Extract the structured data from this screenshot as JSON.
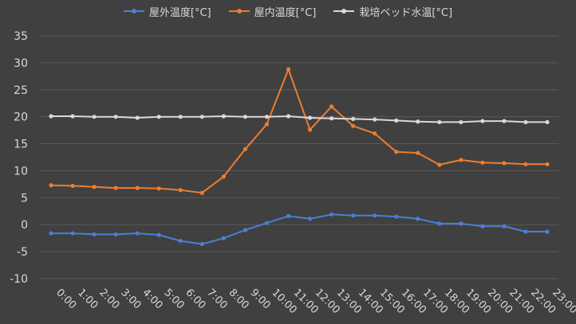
{
  "chart_data": {
    "type": "line",
    "categories": [
      "0:00",
      "1:00",
      "2:00",
      "3:00",
      "4:00",
      "5:00",
      "6:00",
      "7:00",
      "8:00",
      "9:00",
      "10:00",
      "11:00",
      "12:00",
      "13:00",
      "14:00",
      "15:00",
      "16:00",
      "17:00",
      "18:00",
      "19:00",
      "20:00",
      "21:00",
      "22:00",
      "23:00"
    ],
    "ylim": [
      -10,
      35
    ],
    "yticks": [
      -10,
      -5,
      0,
      5,
      10,
      15,
      20,
      25,
      30,
      35
    ],
    "grid": true,
    "legend_position": "top",
    "series": [
      {
        "name": "屋外温度[°C]",
        "color": "#4a7fd4",
        "values": [
          -1.6,
          -1.6,
          -1.8,
          -1.8,
          -1.6,
          -1.9,
          -3.0,
          -3.6,
          -2.5,
          -1.0,
          0.3,
          1.6,
          1.1,
          1.9,
          1.7,
          1.7,
          1.5,
          1.1,
          0.2,
          0.2,
          -0.3,
          -0.3,
          -1.3,
          -1.3
        ]
      },
      {
        "name": "屋内温度[°C]",
        "color": "#ed7d31",
        "values": [
          7.3,
          7.2,
          7.0,
          6.8,
          6.8,
          6.7,
          6.4,
          5.9,
          8.9,
          14.0,
          18.6,
          28.8,
          17.6,
          21.9,
          18.3,
          16.9,
          13.5,
          13.3,
          11.1,
          12.0,
          11.5,
          11.4,
          11.2,
          11.2
        ]
      },
      {
        "name": "栽培ベッド水温[°C]",
        "color": "#d9d9d9",
        "values": [
          20.1,
          20.1,
          20.0,
          20.0,
          19.8,
          20.0,
          20.0,
          20.0,
          20.1,
          20.0,
          20.0,
          20.1,
          19.8,
          19.7,
          19.6,
          19.5,
          19.3,
          19.1,
          19.0,
          19.0,
          19.2,
          19.2,
          19.0,
          19.0
        ]
      }
    ]
  }
}
